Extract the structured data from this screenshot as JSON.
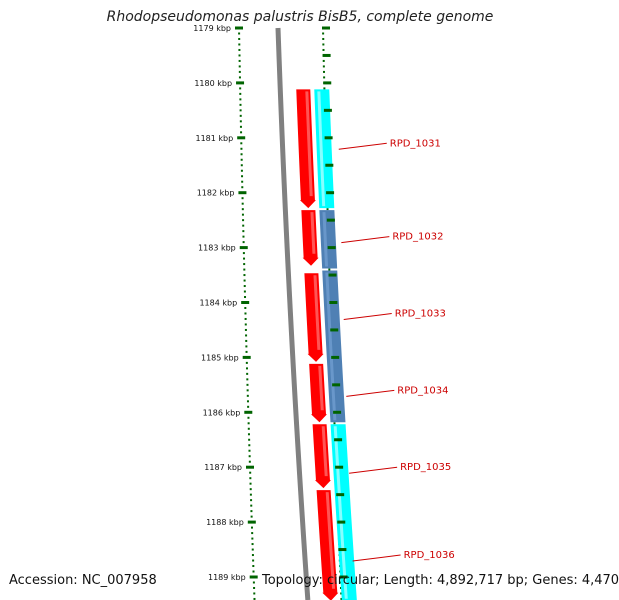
{
  "title": "Rhodopseudomonas palustris BisB5, complete genome",
  "accession": "Accession: NC_007958",
  "topology": "Topology: circular; Length: 4,892,717 bp; Genes: 4,470",
  "colors": {
    "forward_cds": "#ff0000",
    "reverse_cds_cyan": "#00ffff",
    "reverse_cds_blue": "#4f80b4",
    "backbone": "#808080",
    "tick_green": "#006400",
    "label_red": "#cc0000"
  },
  "ticks": [
    {
      "label": "1179 kbp",
      "kbp": 1179
    },
    {
      "label": "1180 kbp",
      "kbp": 1180
    },
    {
      "label": "1181 kbp",
      "kbp": 1181
    },
    {
      "label": "1182 kbp",
      "kbp": 1182
    },
    {
      "label": "1183 kbp",
      "kbp": 1183
    },
    {
      "label": "1184 kbp",
      "kbp": 1184
    },
    {
      "label": "1185 kbp",
      "kbp": 1185
    },
    {
      "label": "1186 kbp",
      "kbp": 1186
    },
    {
      "label": "1187 kbp",
      "kbp": 1187
    },
    {
      "label": "1188 kbp",
      "kbp": 1188
    },
    {
      "label": "1189 kbp",
      "kbp": 1189
    }
  ],
  "genes": [
    {
      "name": "RPD_1031",
      "kbp": 1181.1
    },
    {
      "name": "RPD_1032",
      "kbp": 1182.8
    },
    {
      "name": "RPD_1033",
      "kbp": 1184.2
    },
    {
      "name": "RPD_1034",
      "kbp": 1185.6
    },
    {
      "name": "RPD_1035",
      "kbp": 1187.0
    },
    {
      "name": "RPD_1036",
      "kbp": 1188.6
    }
  ],
  "forward_features": [
    {
      "start": 1180.1,
      "end": 1182.3
    },
    {
      "start": 1182.3,
      "end": 1183.35
    },
    {
      "start": 1183.45,
      "end": 1185.1
    },
    {
      "start": 1185.1,
      "end": 1186.2
    },
    {
      "start": 1186.2,
      "end": 1187.4
    },
    {
      "start": 1187.4,
      "end": 1189.45
    }
  ],
  "reverse_features": [
    {
      "start": 1180.1,
      "end": 1182.3,
      "color": "cyan"
    },
    {
      "start": 1182.3,
      "end": 1183.4,
      "color": "blue"
    },
    {
      "start": 1183.4,
      "end": 1186.2,
      "color": "blue"
    },
    {
      "start": 1186.2,
      "end": 1189.45,
      "color": "cyan"
    }
  ]
}
